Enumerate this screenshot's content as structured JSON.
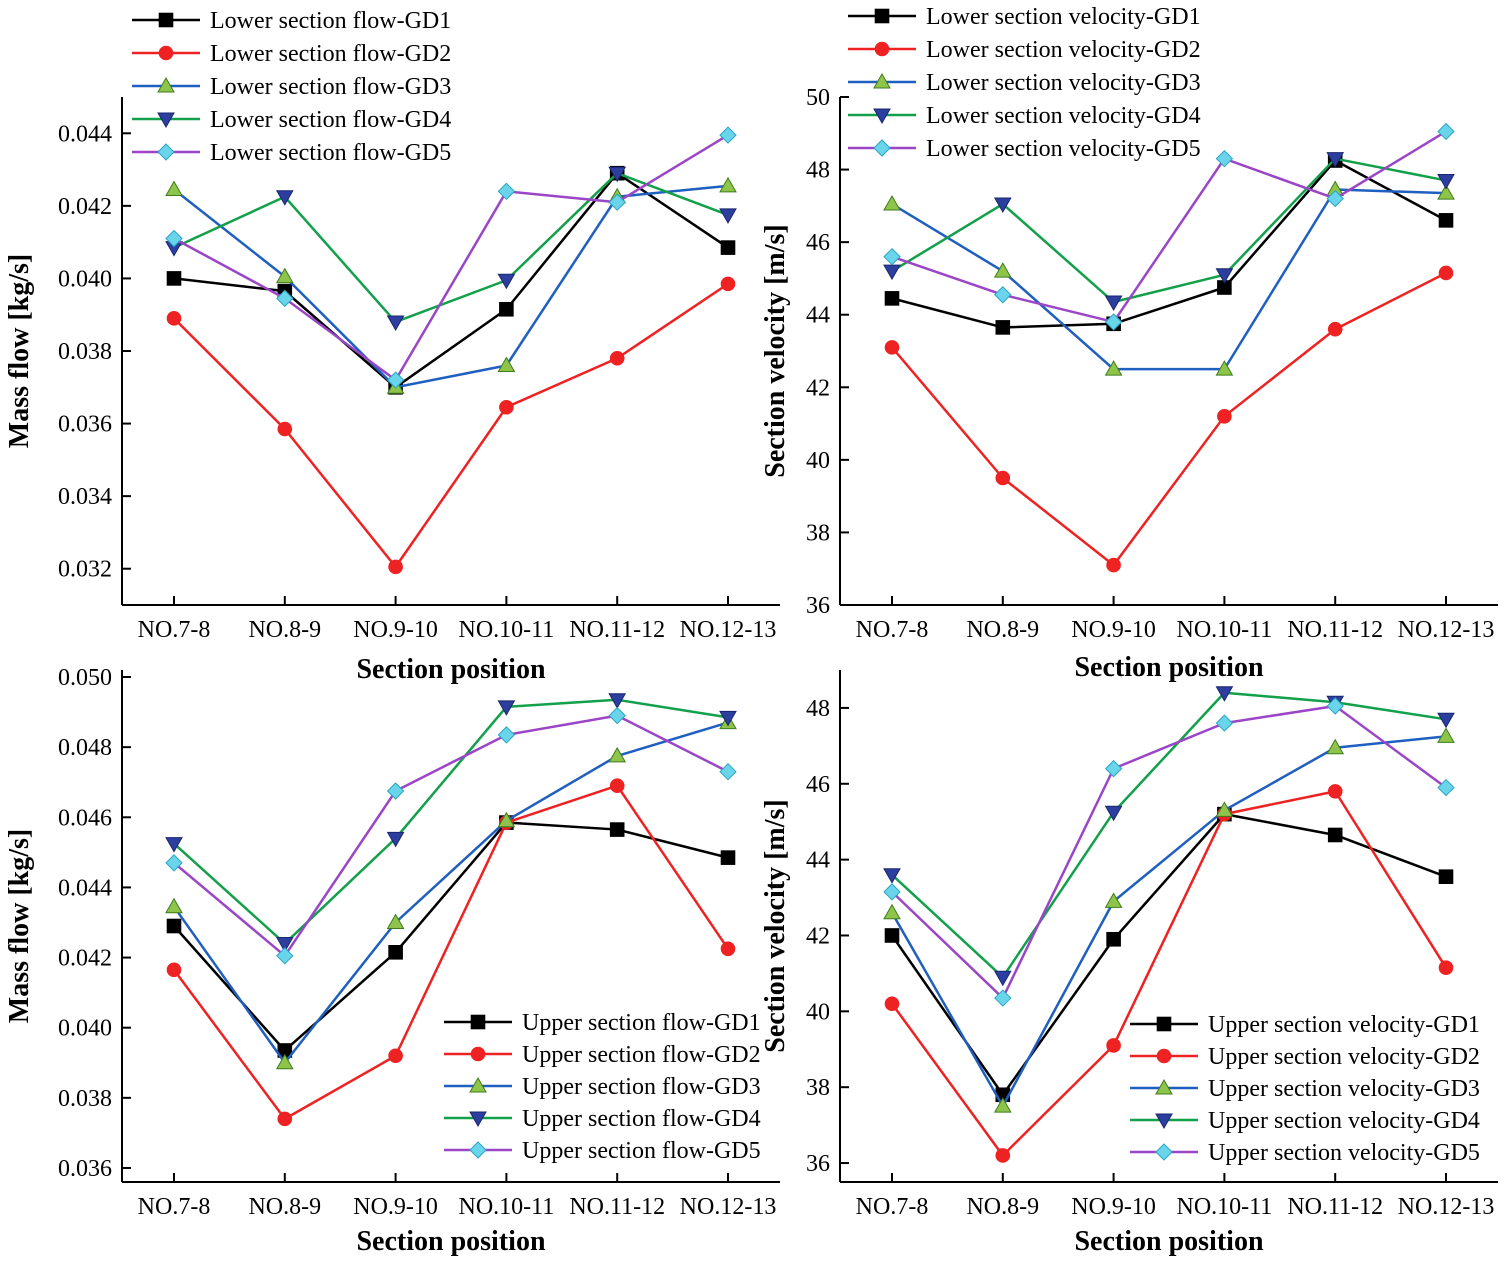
{
  "chart_data": [
    {
      "type": "line",
      "xlabel": "Section position",
      "ylabel": "Mass flow [kg/s]",
      "ylim": [
        0.031,
        0.045
      ],
      "yticks": [
        "0.032",
        "0.034",
        "0.036",
        "0.038",
        "0.040",
        "0.042",
        "0.044"
      ],
      "categories": [
        "NO.7-8",
        "NO.8-9",
        "NO.9-10",
        "NO.10-11",
        "NO.11-12",
        "NO.12-13"
      ],
      "legend_position": "top-left",
      "series": [
        {
          "name": "Lower section flow-GD1",
          "color": "#000000",
          "marker": "square",
          "values": [
            0.04,
            0.03965,
            0.037,
            0.03915,
            0.0429,
            0.04085
          ]
        },
        {
          "name": "Lower section flow-GD2",
          "color": "#ee2222",
          "marker": "circle",
          "values": [
            0.0389,
            0.03585,
            0.03205,
            0.03645,
            0.0378,
            0.03985
          ]
        },
        {
          "name": "Lower section flow-GD3",
          "color": "#1f5fbf",
          "marker": "triangle-up",
          "values": [
            0.04245,
            0.04005,
            0.037,
            0.0376,
            0.04225,
            0.04255
          ]
        },
        {
          "name": "Lower section flow-GD4",
          "color": "#12a04a",
          "marker": "triangle-down",
          "values": [
            0.04085,
            0.04225,
            0.0388,
            0.03995,
            0.0429,
            0.04175
          ]
        },
        {
          "name": "Lower section flow-GD5",
          "color": "#9b45c7",
          "marker": "diamond",
          "values": [
            0.0411,
            0.03945,
            0.0372,
            0.0424,
            0.0421,
            0.04395
          ]
        }
      ]
    },
    {
      "type": "line",
      "xlabel": "Section position",
      "ylabel": "Section velocity [m/s]",
      "ylim": [
        36,
        50
      ],
      "yticks": [
        "36",
        "38",
        "40",
        "42",
        "44",
        "46",
        "48",
        "50"
      ],
      "categories": [
        "NO.7-8",
        "NO.8-9",
        "NO.9-10",
        "NO.10-11",
        "NO.11-12",
        "NO.12-13"
      ],
      "legend_position": "top-left",
      "series": [
        {
          "name": "Lower section velocity-GD1",
          "color": "#000000",
          "marker": "square",
          "values": [
            44.45,
            43.65,
            43.75,
            44.75,
            48.25,
            46.6
          ]
        },
        {
          "name": "Lower section velocity-GD2",
          "color": "#ee2222",
          "marker": "circle",
          "values": [
            43.1,
            39.5,
            37.1,
            41.2,
            43.6,
            45.15
          ]
        },
        {
          "name": "Lower section velocity-GD3",
          "color": "#1f5fbf",
          "marker": "triangle-up",
          "values": [
            47.05,
            45.2,
            42.5,
            42.5,
            47.45,
            47.35
          ]
        },
        {
          "name": "Lower section velocity-GD4",
          "color": "#12a04a",
          "marker": "triangle-down",
          "values": [
            45.2,
            47.05,
            44.35,
            45.1,
            48.3,
            47.7
          ]
        },
        {
          "name": "Lower section velocity-GD5",
          "color": "#9b45c7",
          "marker": "diamond",
          "values": [
            45.6,
            44.55,
            43.8,
            48.3,
            47.2,
            49.05
          ]
        }
      ]
    },
    {
      "type": "line",
      "xlabel": "Section position",
      "ylabel": "Mass flow [kg/s]",
      "ylim": [
        0.0356,
        0.0502
      ],
      "yticks": [
        "0.036",
        "0.038",
        "0.040",
        "0.042",
        "0.044",
        "0.046",
        "0.048",
        "0.050"
      ],
      "categories": [
        "NO.7-8",
        "NO.8-9",
        "NO.9-10",
        "NO.10-11",
        "NO.11-12",
        "NO.12-13"
      ],
      "legend_position": "bottom-right",
      "series": [
        {
          "name": "Upper section flow-GD1",
          "color": "#000000",
          "marker": "square",
          "values": [
            0.0429,
            0.03935,
            0.04215,
            0.04585,
            0.04565,
            0.04485
          ]
        },
        {
          "name": "Upper section flow-GD2",
          "color": "#ee2222",
          "marker": "circle",
          "values": [
            0.04165,
            0.0374,
            0.0392,
            0.04585,
            0.0469,
            0.04225
          ]
        },
        {
          "name": "Upper section flow-GD3",
          "color": "#1f5fbf",
          "marker": "triangle-up",
          "values": [
            0.04345,
            0.039,
            0.043,
            0.0459,
            0.04775,
            0.0487
          ]
        },
        {
          "name": "Upper section flow-GD4",
          "color": "#12a04a",
          "marker": "triangle-down",
          "values": [
            0.04525,
            0.0424,
            0.0454,
            0.04915,
            0.04935,
            0.04885
          ]
        },
        {
          "name": "Upper section flow-GD5",
          "color": "#9b45c7",
          "marker": "diamond",
          "values": [
            0.0447,
            0.04205,
            0.04675,
            0.04835,
            0.0489,
            0.0473
          ]
        }
      ]
    },
    {
      "type": "line",
      "xlabel": "Section position",
      "ylabel": "Section velocity [m/s]",
      "ylim": [
        35.5,
        49
      ],
      "yticks": [
        "36",
        "38",
        "40",
        "42",
        "44",
        "46",
        "48"
      ],
      "categories": [
        "NO.7-8",
        "NO.8-9",
        "NO.9-10",
        "NO.10-11",
        "NO.11-12",
        "NO.12-13"
      ],
      "legend_position": "bottom-right",
      "series": [
        {
          "name": "Upper section velocity-GD1",
          "color": "#000000",
          "marker": "square",
          "values": [
            42.0,
            37.8,
            41.9,
            45.2,
            44.65,
            43.55
          ]
        },
        {
          "name": "Upper section velocity-GD2",
          "color": "#ee2222",
          "marker": "circle",
          "values": [
            40.2,
            36.2,
            39.1,
            45.2,
            45.8,
            41.15
          ]
        },
        {
          "name": "Upper section velocity-GD3",
          "color": "#1f5fbf",
          "marker": "triangle-up",
          "values": [
            42.6,
            37.5,
            42.9,
            45.3,
            46.95,
            47.25
          ]
        },
        {
          "name": "Upper section velocity-GD4",
          "color": "#12a04a",
          "marker": "triangle-down",
          "values": [
            43.6,
            40.9,
            45.25,
            48.4,
            48.15,
            47.7
          ]
        },
        {
          "name": "Upper section velocity-GD5",
          "color": "#9b45c7",
          "marker": "diamond",
          "values": [
            43.15,
            40.35,
            46.4,
            47.6,
            48.05,
            45.9
          ]
        }
      ]
    }
  ]
}
